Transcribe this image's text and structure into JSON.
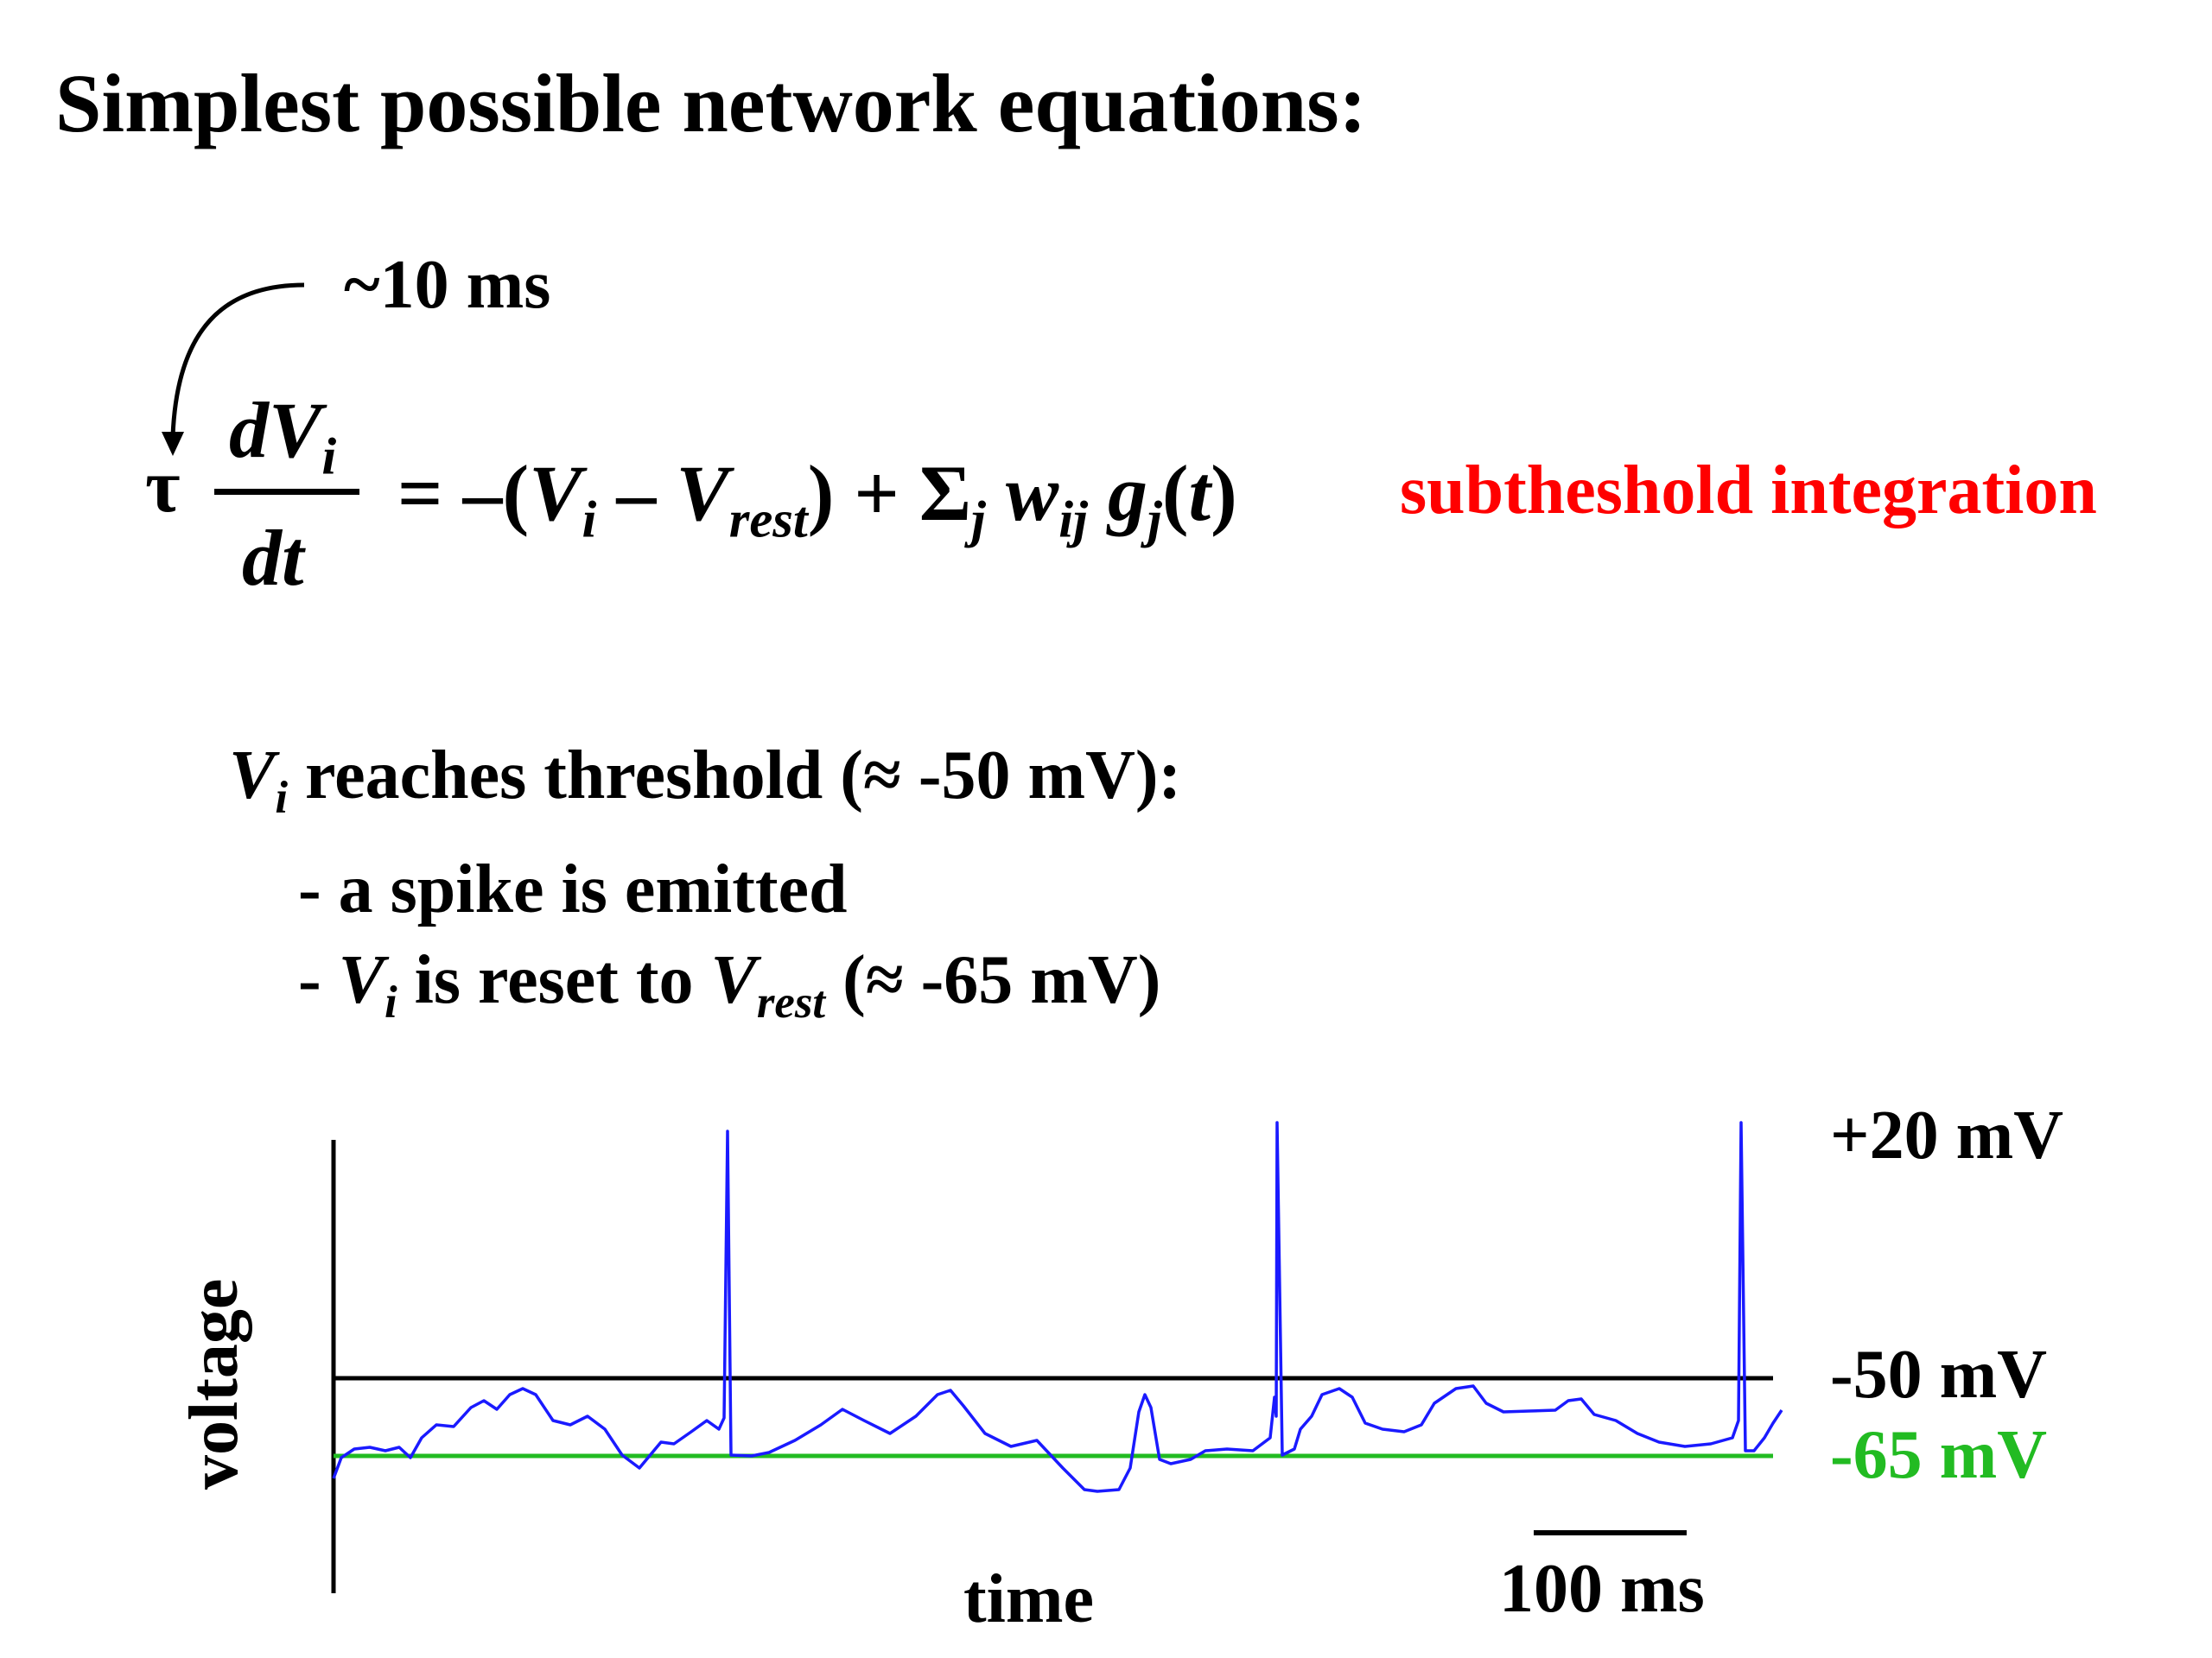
{
  "title": "Simplest possible network equations:",
  "equation": {
    "tau_note": "~10 ms",
    "tau": "τ",
    "lhs_numerator": {
      "d": "d",
      "V": "V",
      "sub": "i"
    },
    "lhs_denominator": "dt",
    "rhs": {
      "eq": "=",
      "minus_open": " –(",
      "Vi": "V",
      "Vi_sub": "i",
      "minus": " – ",
      "Vrest": "V",
      "Vrest_sub": "rest",
      "close_plus": ") + Σ",
      "sum_sub": "j",
      "w": " w",
      "w_sub": "ij",
      "g": " g",
      "g_sub": "j",
      "tail_open": "(",
      "t": "t",
      "tail_close": ")"
    },
    "label": "subtheshold integration",
    "label_color": "#ff0000"
  },
  "threshold_rule": {
    "condition": {
      "V": "V",
      "sub": "i",
      "text": " reaches threshold (≈ -50 mV):"
    },
    "bullets": {
      "b1": "- a spike is emitted",
      "b2_pre": "- ",
      "b2_V": "V",
      "b2_Vsub": "i",
      "b2_mid": " is reset to ",
      "b2_Vr": "V",
      "b2_Vrsub": "rest",
      "b2_end": " (≈ -65 mV)"
    }
  },
  "trace": {
    "ylabel": "voltage",
    "xlabel": "time",
    "scale_bar_label": "100 ms",
    "levels": {
      "spike_peak": "+20 mV",
      "threshold": "-50 mV",
      "rest": "-65 mV"
    },
    "colors": {
      "trace": "#1a1aff",
      "threshold_line": "#000000",
      "rest_line": "#22bb22"
    }
  }
}
